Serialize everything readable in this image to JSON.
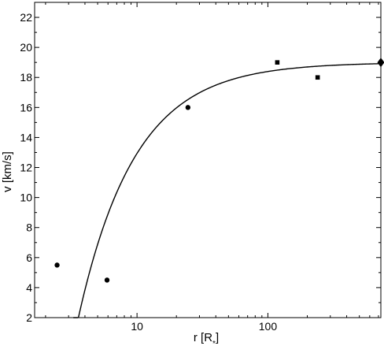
{
  "chart_data": {
    "type": "scatter",
    "title": "",
    "xlabel": "r [R",
    "xlabel_sub": "*",
    "xlabel_close": "]",
    "ylabel": "v [km/s]",
    "x_scale": "log",
    "xlim": [
      1.65,
      730
    ],
    "ylim": [
      2,
      23
    ],
    "grid": false,
    "legend": "none",
    "x_ticks": [
      {
        "value": 10,
        "label": "10"
      },
      {
        "value": 100,
        "label": "100"
      }
    ],
    "y_ticks": [
      {
        "value": 2,
        "label": "2"
      },
      {
        "value": 4,
        "label": "4"
      },
      {
        "value": 6,
        "label": "6"
      },
      {
        "value": 8,
        "label": "8"
      },
      {
        "value": 10,
        "label": "10"
      },
      {
        "value": 12,
        "label": "12"
      },
      {
        "value": 14,
        "label": "14"
      },
      {
        "value": 16,
        "label": "16"
      },
      {
        "value": 18,
        "label": "18"
      },
      {
        "value": 20,
        "label": "20"
      },
      {
        "value": 22,
        "label": "22"
      }
    ],
    "series": [
      {
        "marker": "circle",
        "points": [
          [
            2.45,
            5.5
          ],
          [
            5.9,
            4.5
          ],
          [
            24.5,
            16.0
          ]
        ]
      },
      {
        "marker": "square",
        "points": [
          [
            118,
            19.0
          ],
          [
            240,
            18.0
          ]
        ]
      },
      {
        "marker": "diamond",
        "points": [
          [
            730,
            19.0
          ]
        ]
      }
    ],
    "curve": {
      "style": "line",
      "v_inf": 19.0,
      "r0": 3.19,
      "beta": 1.0,
      "x_start": 3.26,
      "x_end": 730
    }
  }
}
